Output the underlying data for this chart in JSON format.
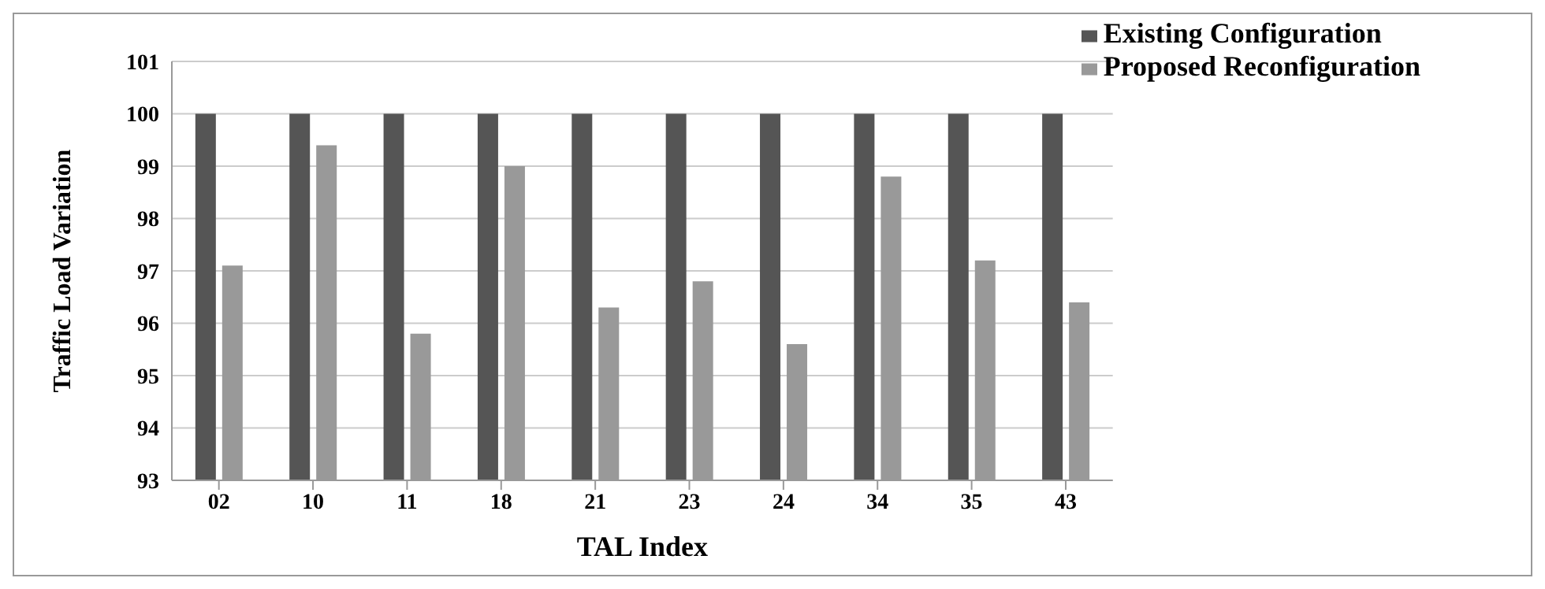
{
  "chart_data": {
    "type": "bar",
    "xlabel": "TAL Index",
    "ylabel": "Traffic Load Variation",
    "categories": [
      "02",
      "10",
      "11",
      "18",
      "21",
      "23",
      "24",
      "34",
      "35",
      "43"
    ],
    "series": [
      {
        "name": "Existing Configuration",
        "color": "#555555",
        "values": [
          100,
          100,
          100,
          100,
          100,
          100,
          100,
          100,
          100,
          100
        ]
      },
      {
        "name": "Proposed Reconfiguration",
        "color": "#999999",
        "values": [
          97.1,
          99.4,
          95.8,
          99.0,
          96.3,
          96.8,
          95.6,
          98.8,
          97.2,
          96.4
        ]
      }
    ],
    "ylim": [
      93,
      101
    ],
    "yticks": [
      93,
      94,
      95,
      96,
      97,
      98,
      99,
      100,
      101
    ],
    "grid": "y",
    "legend": "top right"
  }
}
